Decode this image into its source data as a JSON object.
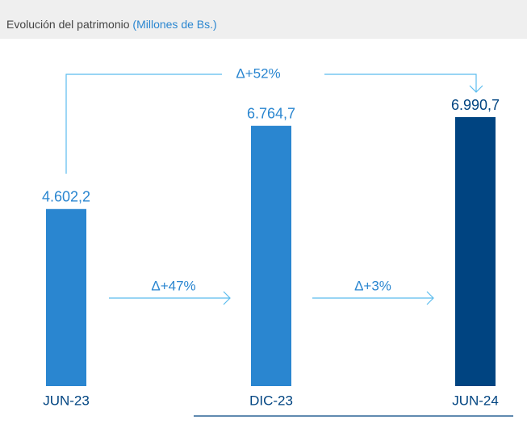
{
  "chart_data": {
    "type": "bar",
    "title": "Evolución del patrimonio",
    "subtitle": "(Millones de Bs.)",
    "categories": [
      "JUN-23",
      "DIC-23",
      "JUN-24"
    ],
    "values": [
      4602.2,
      6764.7,
      6990.7
    ],
    "value_labels": [
      "4.602,2",
      "6.764,7",
      "6.990,7"
    ],
    "colors": [
      "#2a86d0",
      "#2a86d0",
      "#004481"
    ],
    "annotations": [
      "Δ+52%",
      "Δ+47%",
      "Δ+3%"
    ]
  }
}
